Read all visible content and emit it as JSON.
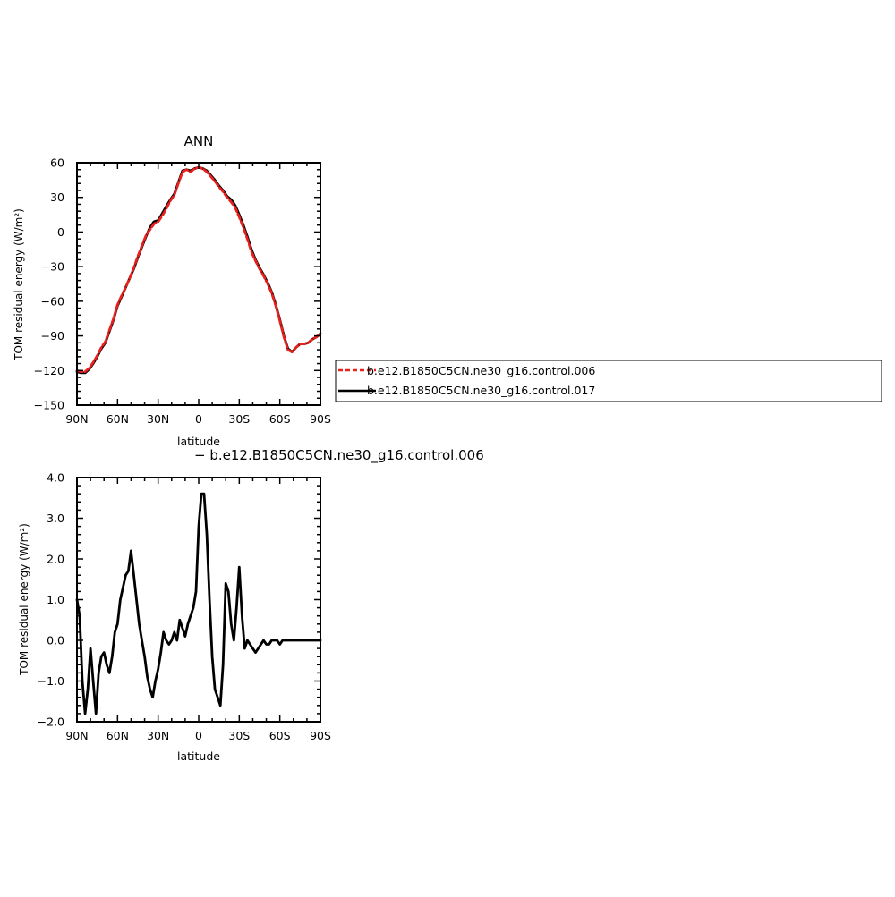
{
  "chart_data": [
    {
      "type": "line",
      "title": "ANN",
      "xlabel": "latitude",
      "ylabel": "TOM residual energy (W/m²)",
      "x_ticks": [
        90,
        60,
        30,
        0,
        -30,
        -60,
        -90
      ],
      "x_tick_labels": [
        "90N",
        "60N",
        "30N",
        "0",
        "30S",
        "60S",
        "90S"
      ],
      "xlim": [
        90,
        -90
      ],
      "ylim": [
        -150,
        60
      ],
      "y_ticks": [
        60,
        30,
        0,
        -30,
        -60,
        -90,
        -120,
        -150
      ],
      "y_tick_labels": [
        "60",
        "30",
        "0",
        "−30",
        "−60",
        "−90",
        "−120",
        "−150"
      ],
      "legend_position": "right",
      "series": [
        {
          "name": "b.e12.B1850C5CN.ne30_g16.control.017",
          "color": "#000000",
          "style": "solid",
          "x": [
            90,
            87,
            84,
            81,
            78,
            75,
            72,
            69,
            66,
            63,
            60,
            57,
            54,
            51,
            48,
            45,
            42,
            39,
            36,
            33,
            30,
            27,
            24,
            21,
            18,
            15,
            12,
            9,
            6,
            3,
            0,
            -3,
            -6,
            -9,
            -12,
            -15,
            -18,
            -21,
            -24,
            -27,
            -30,
            -33,
            -36,
            -39,
            -42,
            -45,
            -48,
            -51,
            -54,
            -57,
            -60,
            -63,
            -66,
            -69,
            -72,
            -75,
            -78,
            -81,
            -84,
            -87,
            -90
          ],
          "y": [
            -121,
            -122,
            -122,
            -119,
            -114,
            -108,
            -101,
            -96,
            -86,
            -76,
            -64,
            -56,
            -48,
            -40,
            -32,
            -22,
            -13,
            -4,
            4,
            9,
            10,
            16,
            22,
            28,
            33,
            43,
            53,
            54,
            53,
            55,
            56,
            55,
            53,
            49,
            45,
            40,
            36,
            31,
            28,
            23,
            15,
            6,
            -4,
            -15,
            -24,
            -31,
            -37,
            -44,
            -52,
            -63,
            -76,
            -90,
            -101,
            -104,
            -100,
            -97,
            -97,
            -96,
            -93,
            -91,
            -88
          ]
        },
        {
          "name": "b.e12.B1850C5CN.ne30_g16.control.006",
          "color": "#e8201e",
          "style": "dashed",
          "x": [
            90,
            87,
            84,
            81,
            78,
            75,
            72,
            69,
            66,
            63,
            60,
            57,
            54,
            51,
            48,
            45,
            42,
            39,
            36,
            33,
            30,
            27,
            24,
            21,
            18,
            15,
            12,
            9,
            6,
            3,
            0,
            -3,
            -6,
            -9,
            -12,
            -15,
            -18,
            -21,
            -24,
            -27,
            -30,
            -33,
            -36,
            -39,
            -42,
            -45,
            -48,
            -51,
            -54,
            -57,
            -60,
            -63,
            -66,
            -69,
            -72,
            -75,
            -78,
            -81,
            -84,
            -87,
            -90
          ],
          "y": [
            -120,
            -121,
            -121,
            -118,
            -113,
            -107,
            -100,
            -95,
            -85,
            -75,
            -63,
            -55,
            -48,
            -40,
            -31,
            -21,
            -12,
            -3,
            2,
            7,
            9,
            14,
            20,
            27,
            32,
            42,
            52,
            54,
            52,
            55,
            56,
            55,
            52,
            48,
            44,
            39,
            35,
            30,
            26,
            21,
            13,
            4,
            -6,
            -17,
            -25,
            -32,
            -38,
            -45,
            -53,
            -64,
            -77,
            -91,
            -102,
            -104,
            -100,
            -97,
            -97,
            -96,
            -93,
            -91,
            -88
          ]
        }
      ]
    },
    {
      "type": "line",
      "title": "− b.e12.B1850C5CN.ne30_g16.control.006",
      "xlabel": "latitude",
      "ylabel": "TOM residual energy (W/m²)",
      "x_ticks": [
        90,
        60,
        30,
        0,
        -30,
        -60,
        -90
      ],
      "x_tick_labels": [
        "90N",
        "60N",
        "30N",
        "0",
        "30S",
        "60S",
        "90S"
      ],
      "xlim": [
        90,
        -90
      ],
      "ylim": [
        -2.0,
        4.0
      ],
      "y_ticks": [
        4.0,
        3.0,
        2.0,
        1.0,
        0.0,
        -1.0,
        -2.0
      ],
      "y_tick_labels": [
        "4.0",
        "3.0",
        "2.0",
        "1.0",
        "0.0",
        "−1.0",
        "−2.0"
      ],
      "series": [
        {
          "color": "#000000",
          "style": "solid",
          "x": [
            90,
            88,
            86,
            84,
            82,
            80,
            78,
            76,
            74,
            72,
            70,
            68,
            66,
            64,
            62,
            60,
            58,
            56,
            54,
            52,
            50,
            48,
            46,
            44,
            42,
            40,
            38,
            36,
            34,
            32,
            30,
            28,
            26,
            24,
            22,
            20,
            18,
            16,
            14,
            12,
            10,
            8,
            6,
            4,
            2,
            0,
            -2,
            -4,
            -6,
            -8,
            -10,
            -12,
            -14,
            -16,
            -18,
            -20,
            -22,
            -24,
            -26,
            -28,
            -30,
            -32,
            -34,
            -36,
            -38,
            -40,
            -42,
            -44,
            -46,
            -48,
            -50,
            -52,
            -54,
            -56,
            -58,
            -60,
            -62,
            -64,
            -66,
            -68,
            -70,
            -72,
            -74,
            -76,
            -78,
            -80,
            -82,
            -84,
            -86,
            -88,
            -90
          ],
          "y": [
            1.0,
            0.6,
            -1.0,
            -1.8,
            -1.2,
            -0.2,
            -1.0,
            -1.8,
            -0.8,
            -0.4,
            -0.3,
            -0.6,
            -0.8,
            -0.4,
            0.2,
            0.4,
            1.0,
            1.3,
            1.6,
            1.7,
            2.2,
            1.6,
            1.0,
            0.4,
            0.0,
            -0.4,
            -0.9,
            -1.2,
            -1.4,
            -1.0,
            -0.7,
            -0.3,
            0.2,
            0.0,
            -0.1,
            0.0,
            0.2,
            0.0,
            0.5,
            0.3,
            0.1,
            0.4,
            0.6,
            0.8,
            1.2,
            2.8,
            3.6,
            3.6,
            2.6,
            1.0,
            -0.4,
            -1.2,
            -1.4,
            -1.6,
            -0.6,
            1.4,
            1.2,
            0.4,
            0.0,
            0.8,
            1.8,
            0.6,
            -0.2,
            0.0,
            -0.1,
            -0.2,
            -0.3,
            -0.2,
            -0.1,
            0.0,
            -0.1,
            -0.1,
            0.0,
            0.0,
            0.0,
            -0.1,
            0.0,
            0.0,
            0.0,
            0.0,
            0.0,
            0.0,
            0.0,
            0.0,
            0.0,
            0.0,
            0.0,
            0.0,
            0.0,
            0.0,
            0.0
          ]
        }
      ]
    }
  ]
}
